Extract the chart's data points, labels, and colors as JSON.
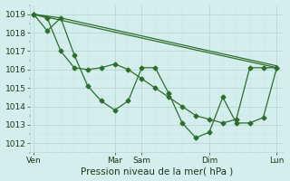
{
  "background_color": "#d4eeed",
  "grid_major_color": "#b8d8d4",
  "grid_minor_color": "#c8e4e0",
  "line_color": "#2d6e2d",
  "xlabel": "Pression niveau de la mer( hPa )",
  "ylim": [
    1011.5,
    1019.5
  ],
  "ytick_positions": [
    1012,
    1013,
    1014,
    1015,
    1016,
    1017,
    1018,
    1019
  ],
  "x_tick_labels": [
    "Ven",
    "Mar",
    "Sam",
    "Dim",
    "Lun"
  ],
  "x_tick_positions": [
    0,
    6,
    8,
    13,
    18
  ],
  "xlim": [
    -0.3,
    18.5
  ],
  "line1_x": [
    0,
    1,
    2,
    3,
    4,
    5,
    6,
    7,
    8,
    9,
    10,
    11,
    12,
    13,
    14,
    15,
    16,
    17,
    18
  ],
  "line1_y": [
    1019.0,
    1018.1,
    1018.8,
    1016.8,
    1015.1,
    1014.3,
    1013.8,
    1014.3,
    1016.1,
    1016.1,
    1014.7,
    1013.1,
    1012.3,
    1012.6,
    1014.5,
    1013.1,
    1013.1,
    1013.4,
    1016.1
  ],
  "line2_x": [
    0,
    1,
    2,
    3,
    4,
    5,
    6,
    7,
    8,
    9,
    10,
    11,
    12,
    13,
    14,
    15,
    16,
    17,
    18
  ],
  "line2_y": [
    1019.0,
    1018.8,
    1017.0,
    1016.1,
    1016.0,
    1016.1,
    1016.3,
    1016.0,
    1015.5,
    1015.0,
    1014.5,
    1014.0,
    1013.5,
    1013.3,
    1013.1,
    1013.3,
    1016.1,
    1016.1,
    1016.1
  ],
  "line3_x": [
    0,
    2,
    18
  ],
  "line3_y": [
    1019.0,
    1018.8,
    1016.2
  ],
  "line4_x": [
    0,
    18
  ],
  "line4_y": [
    1019.0,
    1016.1
  ],
  "markersize": 2.5,
  "linewidth": 0.9,
  "xlabel_fontsize": 7.5,
  "tick_fontsize": 6.5
}
